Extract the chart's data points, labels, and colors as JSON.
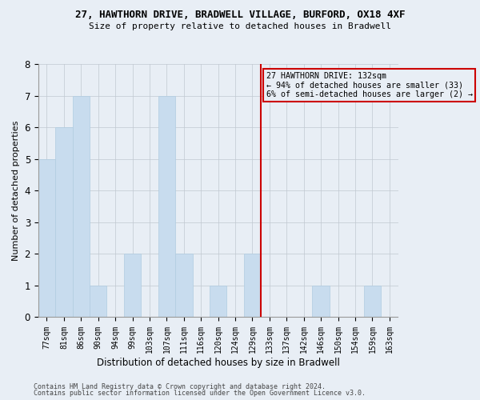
{
  "title1": "27, HAWTHORN DRIVE, BRADWELL VILLAGE, BURFORD, OX18 4XF",
  "title2": "Size of property relative to detached houses in Bradwell",
  "xlabel": "Distribution of detached houses by size in Bradwell",
  "ylabel": "Number of detached properties",
  "bins": [
    "77sqm",
    "81sqm",
    "86sqm",
    "90sqm",
    "94sqm",
    "99sqm",
    "103sqm",
    "107sqm",
    "111sqm",
    "116sqm",
    "120sqm",
    "124sqm",
    "129sqm",
    "133sqm",
    "137sqm",
    "142sqm",
    "146sqm",
    "150sqm",
    "154sqm",
    "159sqm",
    "163sqm"
  ],
  "values": [
    5,
    6,
    7,
    1,
    0,
    2,
    0,
    7,
    2,
    0,
    1,
    0,
    2,
    0,
    0,
    0,
    1,
    0,
    0,
    1,
    0
  ],
  "bar_color": "#c8dcee",
  "bar_edgecolor": "#b0cce0",
  "property_line_x": 12.5,
  "property_line_label": "27 HAWTHORN DRIVE: 132sqm",
  "annotation_line1": "← 94% of detached houses are smaller (33)",
  "annotation_line2": "6% of semi-detached houses are larger (2) →",
  "vline_color": "#cc0000",
  "annotation_box_edgecolor": "#cc0000",
  "background_color": "#e8eef5",
  "grid_color": "#c0c8d0",
  "footnote1": "Contains HM Land Registry data © Crown copyright and database right 2024.",
  "footnote2": "Contains public sector information licensed under the Open Government Licence v3.0.",
  "ylim": [
    0,
    8
  ],
  "yticks": [
    0,
    1,
    2,
    3,
    4,
    5,
    6,
    7,
    8
  ]
}
